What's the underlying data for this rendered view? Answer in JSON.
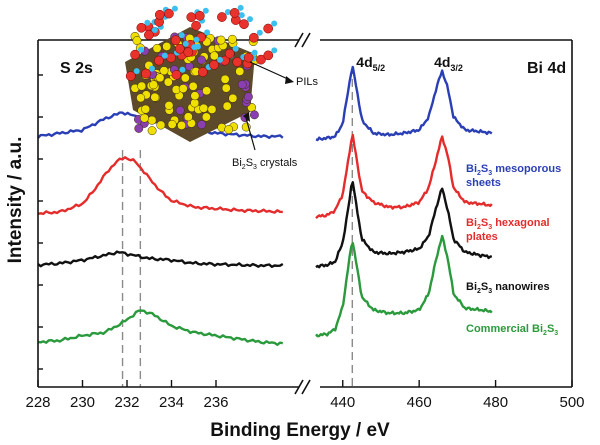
{
  "chart_data": {
    "type": "line",
    "title": "",
    "xlabel": "Binding Energy / eV",
    "ylabel": "Intensity / a.u.",
    "axis_break": true,
    "panels": [
      {
        "name": "S 2s",
        "xlim": [
          228,
          240
        ],
        "ticks": [
          228,
          230,
          232,
          234,
          236
        ],
        "reference_lines": [
          231.8,
          232.6
        ]
      },
      {
        "name": "Bi 4d",
        "xlim": [
          433,
          500
        ],
        "ticks": [
          440,
          460,
          480,
          500
        ],
        "reference_lines": [
          442.5
        ]
      }
    ],
    "peak_labels": [
      {
        "main": "4d",
        "sub": "5/2",
        "x": 442.5
      },
      {
        "main": "4d",
        "sub": "3/2",
        "x": 466
      }
    ],
    "series": [
      {
        "label_lines": [
          [
            "Bi",
            "2",
            "S",
            "3",
            " mesoporous"
          ],
          [
            "sheets"
          ]
        ],
        "color": "#2b3fb5",
        "s2s": {
          "x": [
            228,
            229,
            230,
            231,
            231.8,
            232.5,
            233,
            234,
            235,
            236,
            237,
            238,
            239
          ],
          "y": [
            0.78,
            0.79,
            0.8,
            0.835,
            0.855,
            0.84,
            0.83,
            0.81,
            0.8,
            0.79,
            0.785,
            0.78,
            0.78
          ]
        },
        "bi4d": {
          "x": [
            433,
            436,
            438,
            440,
            441.5,
            442.5,
            443.5,
            445,
            448,
            452,
            456,
            460,
            462.5,
            464.5,
            466,
            467.5,
            469,
            472,
            476,
            479
          ],
          "y": [
            0.77,
            0.775,
            0.78,
            0.82,
            0.93,
            1.0,
            0.94,
            0.83,
            0.79,
            0.785,
            0.79,
            0.8,
            0.84,
            0.93,
            0.985,
            0.93,
            0.84,
            0.8,
            0.795,
            0.79
          ]
        }
      },
      {
        "label_lines": [
          [
            "Bi",
            "2",
            "S",
            "3",
            " hexagonal"
          ],
          [
            "plates"
          ]
        ],
        "color": "#e52c2c",
        "s2s": {
          "x": [
            228,
            229,
            230,
            230.5,
            231,
            231.5,
            231.9,
            232.4,
            233,
            233.5,
            234,
            235,
            236,
            237,
            238,
            239
          ],
          "y": [
            0.54,
            0.545,
            0.57,
            0.61,
            0.66,
            0.7,
            0.715,
            0.7,
            0.65,
            0.61,
            0.58,
            0.56,
            0.555,
            0.55,
            0.548,
            0.545
          ]
        },
        "bi4d": {
          "x": [
            433,
            436,
            438,
            440,
            441.5,
            442.5,
            443.5,
            445,
            448,
            452,
            456,
            460,
            462.5,
            464.5,
            466,
            467.5,
            469,
            472,
            476,
            479
          ],
          "y": [
            0.53,
            0.535,
            0.55,
            0.6,
            0.71,
            0.79,
            0.72,
            0.61,
            0.575,
            0.56,
            0.56,
            0.575,
            0.62,
            0.71,
            0.78,
            0.72,
            0.62,
            0.575,
            0.57,
            0.565
          ]
        }
      },
      {
        "label_lines": [
          [
            "Bi",
            "2",
            "S",
            "3",
            " nanowires"
          ]
        ],
        "color": "#111111",
        "s2s": {
          "x": [
            228,
            229,
            230,
            231,
            231.6,
            232.3,
            233,
            234,
            235,
            236,
            237,
            238,
            239
          ],
          "y": [
            0.38,
            0.385,
            0.395,
            0.41,
            0.42,
            0.41,
            0.4,
            0.395,
            0.385,
            0.382,
            0.38,
            0.378,
            0.378
          ]
        },
        "bi4d": {
          "x": [
            433,
            436,
            438,
            440,
            441.5,
            442.5,
            443.5,
            445,
            448,
            452,
            456,
            460,
            462.5,
            464.5,
            466,
            467.5,
            469,
            472,
            476,
            479
          ],
          "y": [
            0.375,
            0.38,
            0.39,
            0.45,
            0.56,
            0.65,
            0.57,
            0.46,
            0.42,
            0.415,
            0.42,
            0.43,
            0.47,
            0.56,
            0.62,
            0.55,
            0.46,
            0.42,
            0.41,
            0.405
          ]
        }
      },
      {
        "label_lines": [
          [
            "Commercial Bi",
            "2",
            "S",
            "3",
            ""
          ]
        ],
        "color": "#2a9a3d",
        "s2s": {
          "x": [
            228,
            229,
            230,
            231,
            231.8,
            232.6,
            233.2,
            234,
            235,
            236,
            237,
            238,
            239
          ],
          "y": [
            0.14,
            0.145,
            0.16,
            0.17,
            0.2,
            0.24,
            0.225,
            0.19,
            0.17,
            0.16,
            0.15,
            0.14,
            0.135
          ]
        },
        "bi4d": {
          "x": [
            433,
            436,
            438,
            440,
            441.5,
            442.5,
            443.5,
            445,
            448,
            452,
            456,
            460,
            462.5,
            464.5,
            466,
            467.5,
            469,
            472,
            476,
            479
          ],
          "y": [
            0.16,
            0.165,
            0.18,
            0.25,
            0.38,
            0.46,
            0.39,
            0.28,
            0.24,
            0.23,
            0.23,
            0.24,
            0.29,
            0.4,
            0.47,
            0.4,
            0.29,
            0.245,
            0.24,
            0.235
          ]
        }
      }
    ]
  },
  "inset": {
    "pils_label": "PILs",
    "crystal_label_parts": [
      "Bi",
      "2",
      "S",
      "3",
      " crystals"
    ]
  }
}
